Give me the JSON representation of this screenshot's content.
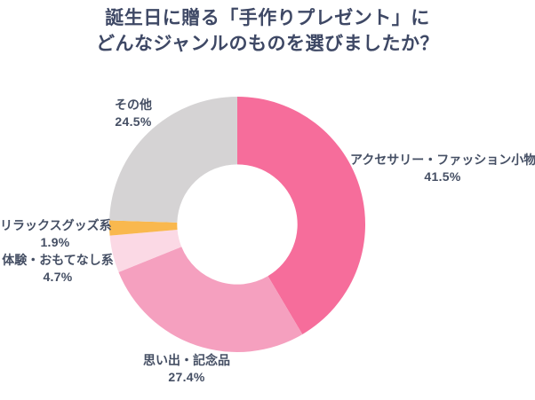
{
  "title": {
    "line1": "誕生日に贈る「手作りプレゼント」に",
    "line2": "どんなジャンルのものを選びましたか？"
  },
  "colors": {
    "title_text": "#3E4865",
    "label_text": "#454F64",
    "background": "#FFFFFF"
  },
  "chart_data": {
    "type": "pie",
    "subtype": "donut",
    "title": "誕生日に贈る「手作りプレゼント」に どんなジャンルのものを選びましたか？",
    "start_angle_deg": 0,
    "direction": "clockwise",
    "inner_radius_ratio": 0.47,
    "legend_position": "none",
    "labels_position": "outside",
    "segments": [
      {
        "label": "アクセサリー・ファッション小物",
        "value": 41.5,
        "percent": "41.5%",
        "color": "#F66D9B"
      },
      {
        "label": "思い出・記念品",
        "value": 27.4,
        "percent": "27.4%",
        "color": "#F5A0BF"
      },
      {
        "label": "体験・おもてなし系",
        "value": 4.7,
        "percent": "4.7%",
        "color": "#FBD9E5"
      },
      {
        "label": "リラックスグッズ系",
        "value": 1.9,
        "percent": "1.9%",
        "color": "#F9B84E"
      },
      {
        "label": "その他",
        "value": 24.5,
        "percent": "24.5%",
        "color": "#D5D3D4"
      }
    ]
  }
}
